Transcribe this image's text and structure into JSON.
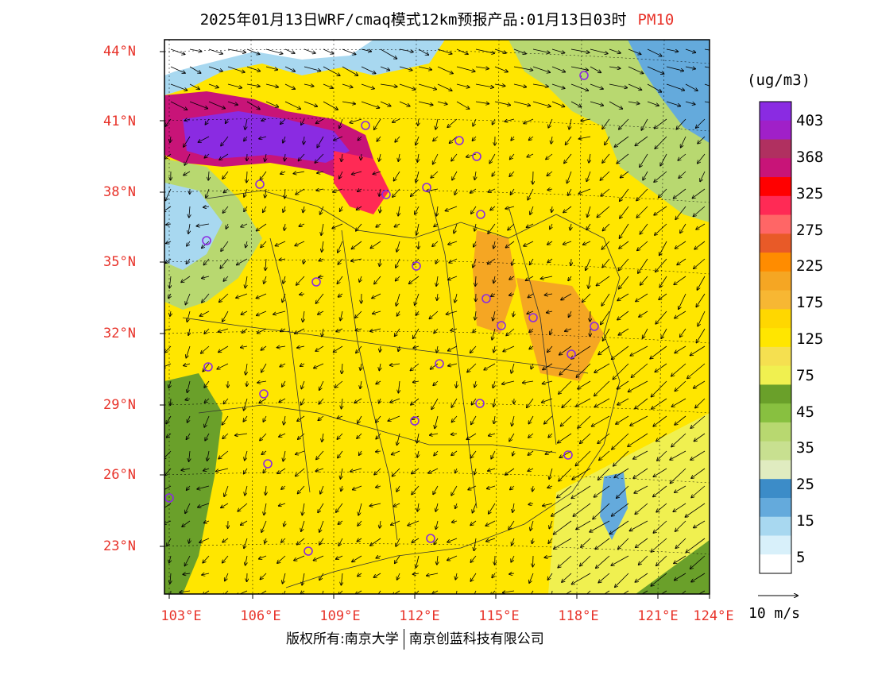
{
  "title": {
    "main": "2025年01月13日WRF/cmaq模式12km预报产品:01月13日03时",
    "variable": "PM10"
  },
  "axes": {
    "lat_labels": [
      "44°N",
      "41°N",
      "38°N",
      "35°N",
      "32°N",
      "29°N",
      "26°N",
      "23°N"
    ],
    "lon_labels": [
      "103°E",
      "106°E",
      "109°E",
      "112°E",
      "115°E",
      "118°E",
      "121°E",
      "124°E"
    ]
  },
  "legend": {
    "unit": "(ug/m3)",
    "labels": [
      "403",
      "368",
      "325",
      "275",
      "225",
      "175",
      "125",
      "75",
      "45",
      "35",
      "25",
      "15",
      "5"
    ],
    "colors": [
      "#8a2be2",
      "#a020c8",
      "#b03060",
      "#c81478",
      "#ff0000",
      "#ff2a55",
      "#ff6666",
      "#e85a28",
      "#ff8c00",
      "#f5a623",
      "#f7b733",
      "#ffd700",
      "#ffe600",
      "#f5e050",
      "#f0f050",
      "#6aa02a",
      "#88c040",
      "#b8d870",
      "#c8e090",
      "#e0ecc0",
      "#3c8cc8",
      "#64aadc",
      "#a8d8f0",
      "#d8f0fa",
      "#ffffff"
    ]
  },
  "scale": {
    "label": "10 m/s"
  },
  "footer": {
    "left": "版权所有:南京大学",
    "right": "南京创蓝科技有限公司"
  }
}
